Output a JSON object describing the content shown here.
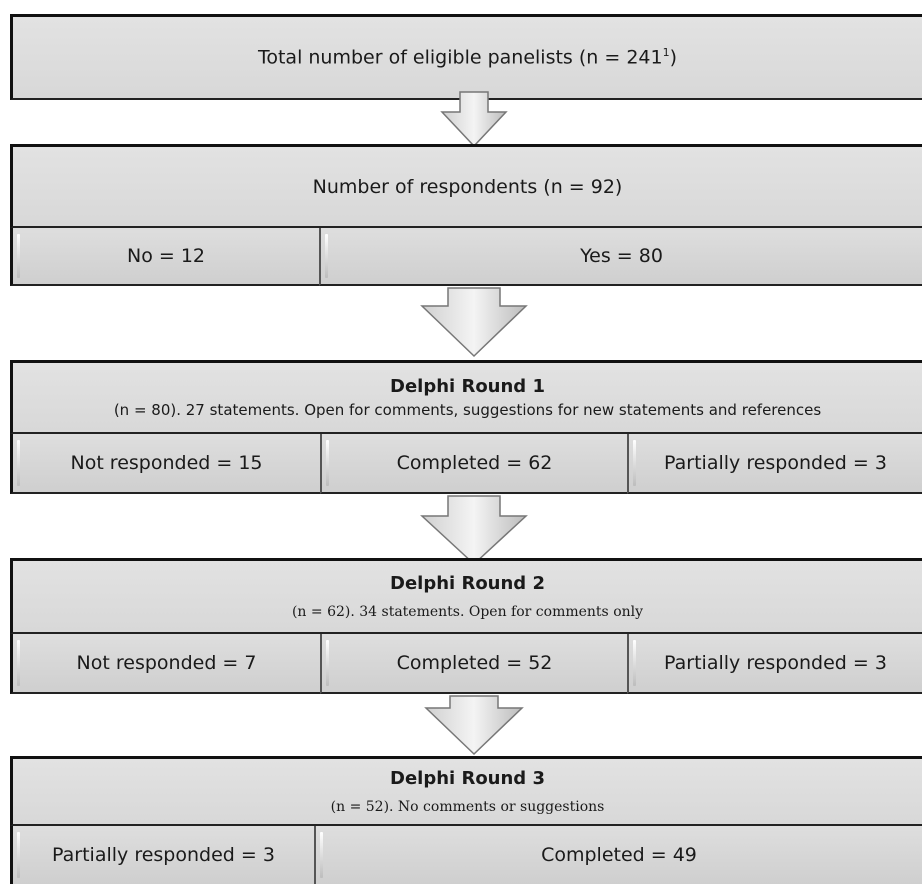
{
  "total": {
    "text": "Total number of eligible panelists (n = 241",
    "sup": "1",
    "close": ")"
  },
  "respondents": {
    "title": "Number of respondents (n = 92)",
    "no": "No = 12",
    "yes": "Yes = 80"
  },
  "round1": {
    "title": "Delphi Round 1",
    "subtitle": "(n = 80). 27 statements. Open for comments, suggestions for new statements and references",
    "not_responded": "Not responded = 15",
    "completed": "Completed = 62",
    "partial": "Partially responded = 3"
  },
  "round2": {
    "title": "Delphi Round 2",
    "subtitle": "(n = 62). 34 statements.  Open for comments only",
    "not_responded": "Not responded = 7",
    "completed": "Completed = 52",
    "partial": "Partially responded = 3"
  },
  "round3": {
    "title": "Delphi Round 3",
    "subtitle": "(n = 52). No comments or suggestions",
    "partial": "Partially responded = 3",
    "completed": "Completed = 49"
  }
}
